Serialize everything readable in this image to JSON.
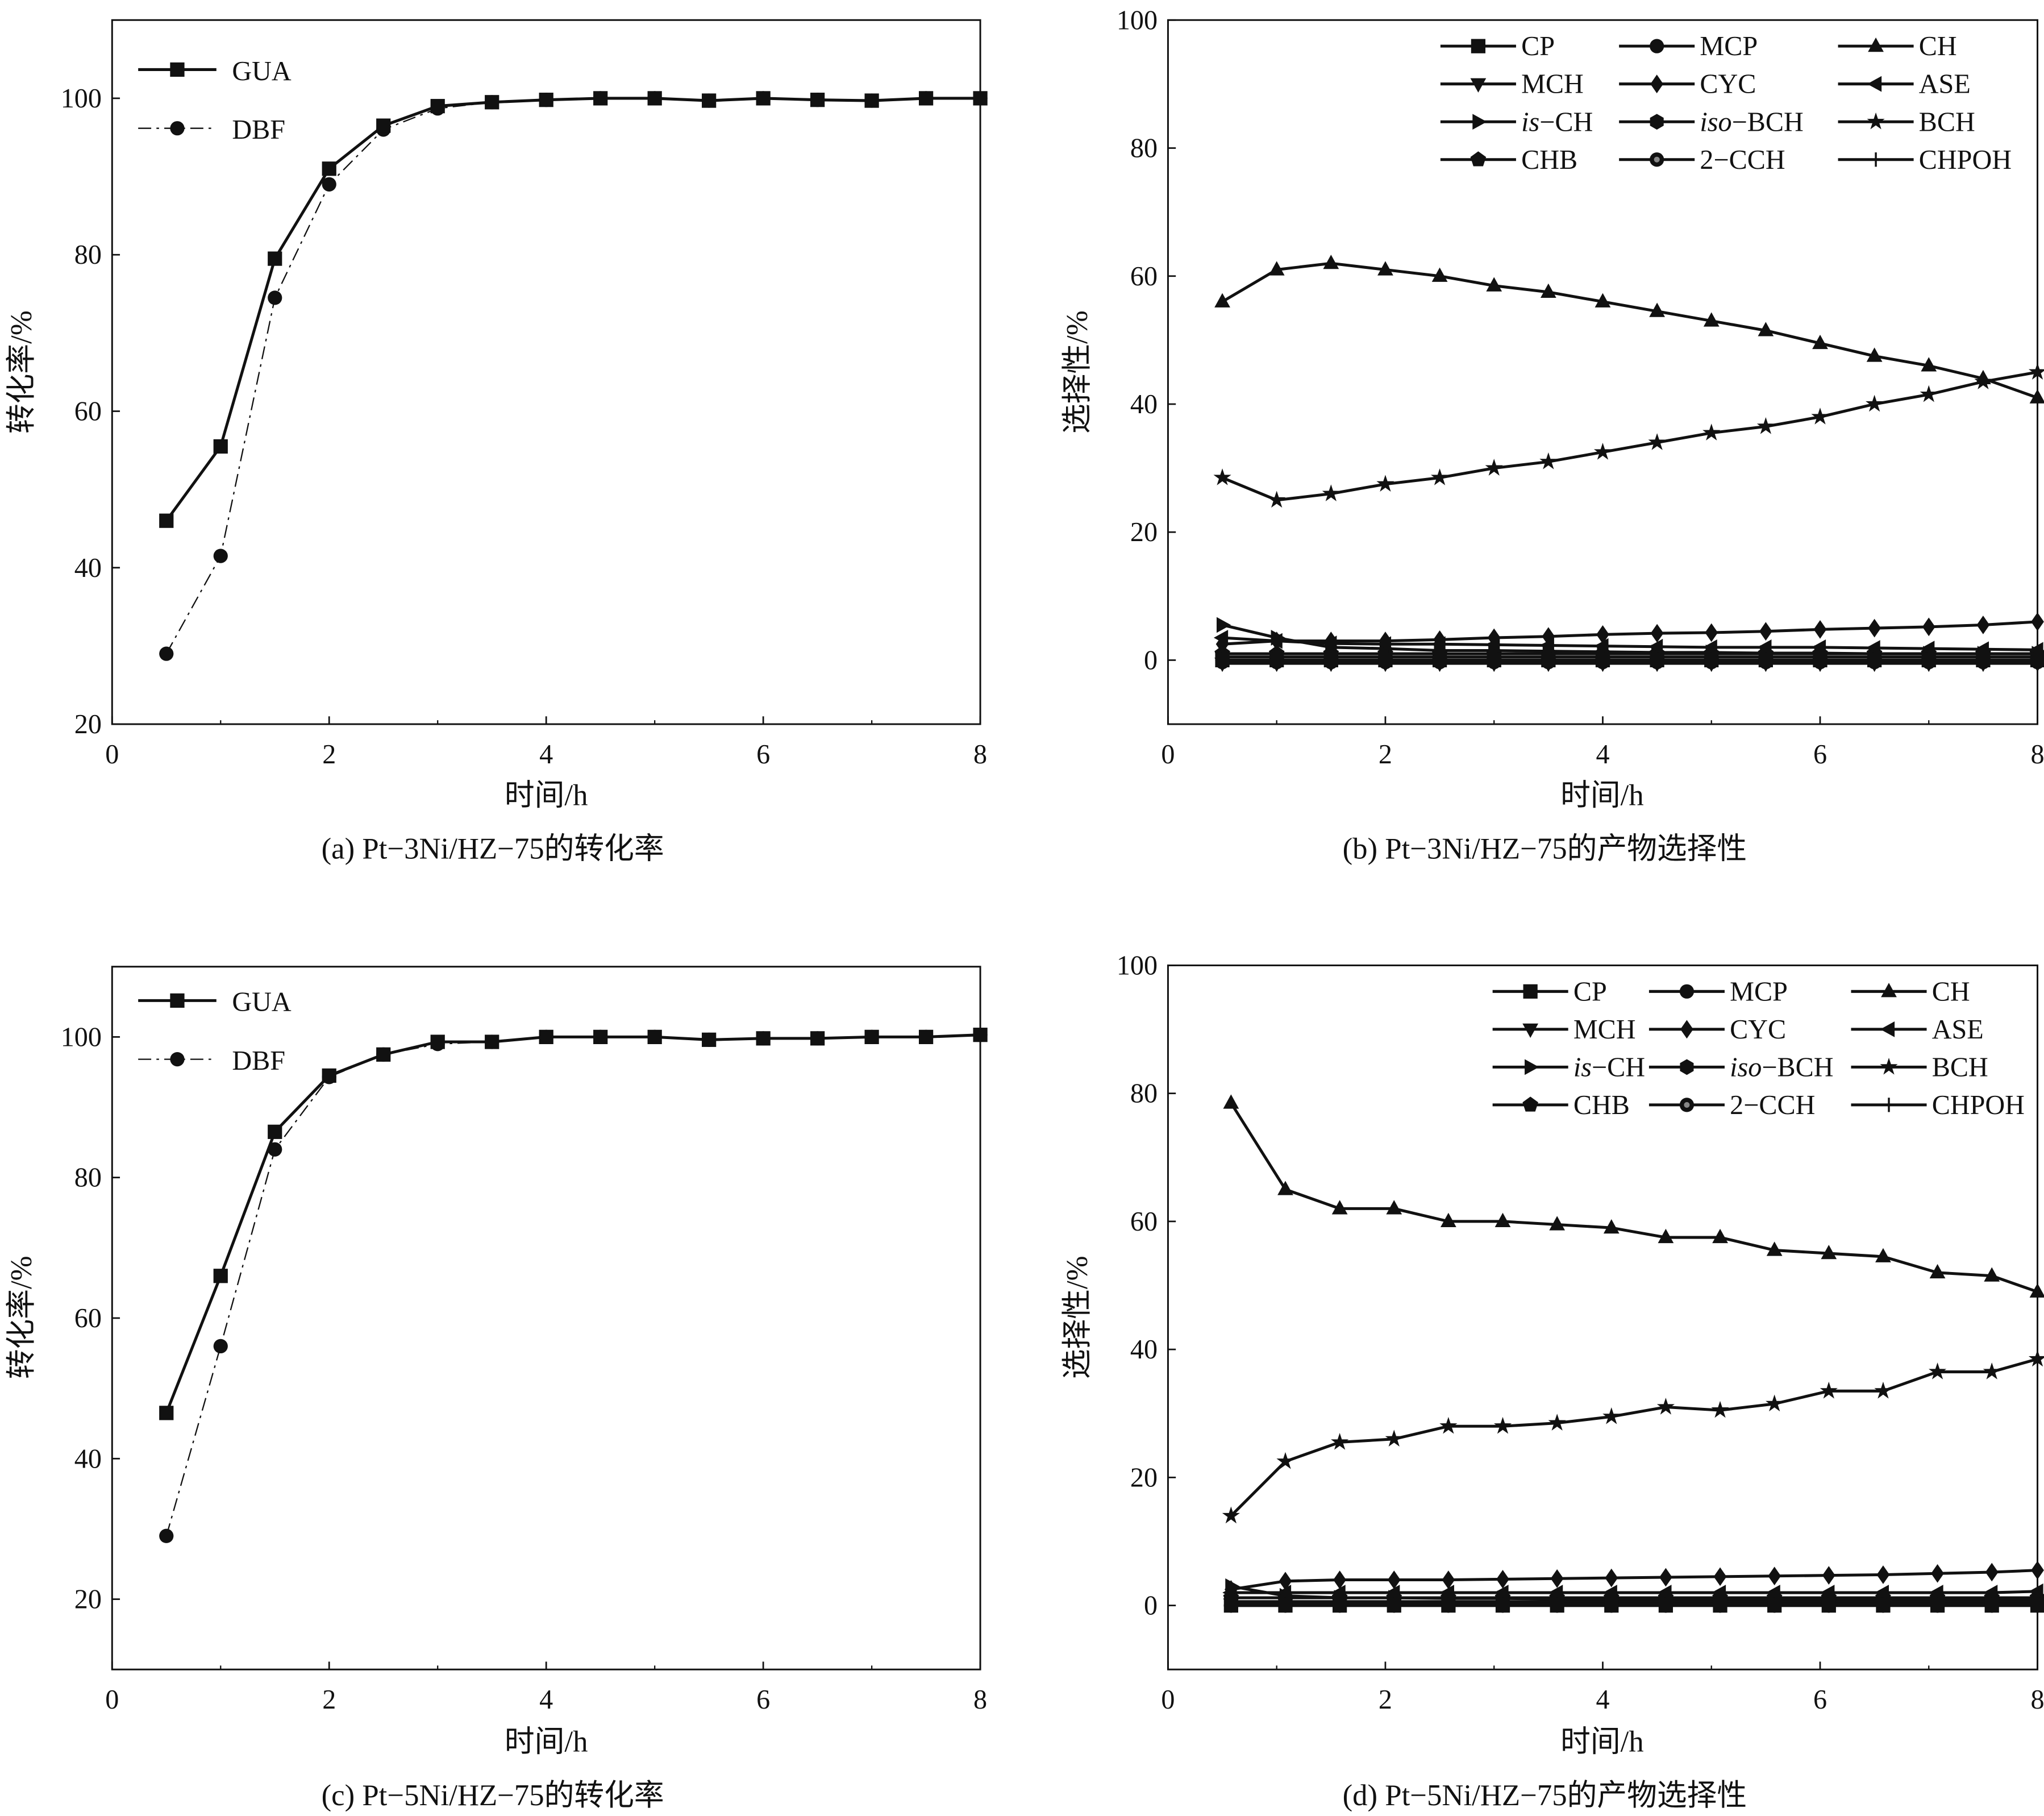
{
  "chart_data": [
    {
      "id": "a",
      "type": "line",
      "caption": "(a) Pt−3Ni/HZ−75的转化率",
      "xlabel": "时间/h",
      "ylabel": "转化率/%",
      "xlim": [
        0,
        8
      ],
      "ylim": [
        20,
        110
      ],
      "xticks": [
        0,
        2,
        4,
        6,
        8
      ],
      "yticks": [
        20,
        40,
        60,
        80,
        100
      ],
      "legend": "top-left",
      "grid": false,
      "x": [
        0.5,
        1,
        1.5,
        2,
        2.5,
        3,
        3.5,
        4,
        4.5,
        5,
        5.5,
        6,
        6.5,
        7,
        7.5,
        8
      ],
      "series": [
        {
          "name": "GUA",
          "marker": "square",
          "style": "solid",
          "values": [
            46,
            55.5,
            79.5,
            91,
            96.5,
            99,
            99.5,
            99.8,
            100,
            100,
            99.7,
            100,
            99.8,
            99.7,
            100,
            100
          ]
        },
        {
          "name": "DBF",
          "marker": "circle",
          "style": "dashdot",
          "values": [
            29,
            41.5,
            74.5,
            89,
            96,
            98.7,
            99.5,
            99.8,
            100,
            100,
            99.7,
            100,
            99.8,
            99.7,
            100,
            100
          ]
        }
      ]
    },
    {
      "id": "b",
      "type": "line",
      "caption": "(b) Pt−3Ni/HZ−75的产物选择性",
      "xlabel": "时间/h",
      "ylabel": "选择性/%",
      "xlim": [
        0,
        8
      ],
      "ylim": [
        -10,
        100
      ],
      "xticks": [
        0,
        2,
        4,
        6,
        8
      ],
      "yticks": [
        0,
        20,
        40,
        60,
        80,
        100
      ],
      "legend": "top-right",
      "grid": false,
      "x": [
        0.5,
        1,
        1.5,
        2,
        2.5,
        3,
        3.5,
        4,
        4.5,
        5,
        5.5,
        6,
        6.5,
        7,
        7.5,
        8
      ],
      "series": [
        {
          "name": "CP",
          "marker": "square",
          "values": [
            0,
            0,
            0,
            0,
            0,
            0,
            0,
            0,
            0,
            0,
            0,
            0,
            0,
            0,
            0,
            0
          ]
        },
        {
          "name": "MCP",
          "marker": "circle",
          "values": [
            -0.3,
            -0.3,
            -0.3,
            -0.3,
            -0.3,
            -0.3,
            -0.3,
            -0.3,
            -0.3,
            -0.3,
            -0.3,
            -0.3,
            -0.3,
            -0.3,
            -0.3,
            -0.3
          ]
        },
        {
          "name": "CH",
          "marker": "triangle-up",
          "values": [
            56,
            61,
            62,
            61,
            60,
            58.5,
            57.5,
            56,
            54.5,
            53,
            51.5,
            49.5,
            47.5,
            46,
            44,
            41
          ]
        },
        {
          "name": "MCH",
          "marker": "triangle-down",
          "values": [
            -0.5,
            -0.5,
            -0.5,
            -0.5,
            -0.5,
            -0.5,
            -0.5,
            -0.5,
            -0.5,
            -0.5,
            -0.5,
            -0.5,
            -0.5,
            -0.5,
            -0.5,
            -0.5
          ]
        },
        {
          "name": "CYC",
          "marker": "diamond",
          "values": [
            2.5,
            3,
            3,
            3,
            3.2,
            3.5,
            3.7,
            4,
            4.2,
            4.3,
            4.5,
            4.8,
            5,
            5.2,
            5.5,
            6
          ]
        },
        {
          "name": "ASE",
          "marker": "triangle-left",
          "values": [
            3.5,
            3,
            2.6,
            2.5,
            2.5,
            2.4,
            2.3,
            2.2,
            2.1,
            2,
            2,
            2,
            1.9,
            1.8,
            1.7,
            1.6
          ]
        },
        {
          "name": "is-CH",
          "marker": "triangle-right",
          "values": [
            5.5,
            3.5,
            2,
            1.8,
            1.5,
            1.5,
            1.4,
            1.3,
            1.2,
            1.2,
            1.1,
            1.1,
            1,
            1,
            1,
            1
          ]
        },
        {
          "name": "iso-BCH",
          "marker": "hexagon",
          "values": [
            0.5,
            0.5,
            0.5,
            0.5,
            0.5,
            0.5,
            0.5,
            0.5,
            0.5,
            0.5,
            0.5,
            0.5,
            0.5,
            0.5,
            0.5,
            0.5
          ]
        },
        {
          "name": "BCH",
          "marker": "star",
          "values": [
            28.5,
            25,
            26,
            27.5,
            28.5,
            30,
            31,
            32.5,
            34,
            35.5,
            36.5,
            38,
            40,
            41.5,
            43.5,
            45
          ]
        },
        {
          "name": "CHB",
          "marker": "pentagon",
          "values": [
            1,
            1,
            1,
            1,
            1,
            1,
            1,
            1,
            1,
            1,
            1,
            1,
            1,
            1,
            1,
            1
          ]
        },
        {
          "name": "2-CCH",
          "marker": "circle-gray",
          "values": [
            0,
            0,
            0,
            0,
            0,
            0,
            0,
            0,
            0,
            0,
            0,
            0,
            0,
            0,
            0,
            0
          ]
        },
        {
          "name": "CHPOH",
          "marker": "plus",
          "values": [
            0,
            0,
            0,
            0,
            0,
            0,
            0,
            0,
            0,
            0,
            0,
            0,
            0,
            0,
            0,
            0
          ]
        }
      ]
    },
    {
      "id": "c",
      "type": "line",
      "caption": "(c) Pt−5Ni/HZ−75的转化率",
      "xlabel": "时间/h",
      "ylabel": "转化率/%",
      "xlim": [
        0,
        8
      ],
      "ylim": [
        10,
        110
      ],
      "xticks": [
        0,
        2,
        4,
        6,
        8
      ],
      "yticks": [
        20,
        40,
        60,
        80,
        100
      ],
      "legend": "top-left",
      "grid": false,
      "x": [
        0.5,
        1,
        1.5,
        2,
        2.5,
        3,
        3.5,
        4,
        4.5,
        5,
        5.5,
        6,
        6.5,
        7,
        7.5,
        8
      ],
      "series": [
        {
          "name": "GUA",
          "marker": "square",
          "style": "solid",
          "values": [
            46.5,
            66,
            86.5,
            94.5,
            97.5,
            99.3,
            99.3,
            100,
            100,
            100,
            99.6,
            99.8,
            99.8,
            100,
            100,
            100.3
          ]
        },
        {
          "name": "DBF",
          "marker": "circle",
          "style": "dashdot",
          "values": [
            29,
            56,
            84,
            94.3,
            97.5,
            99,
            99.3,
            100,
            100,
            100,
            99.6,
            99.8,
            99.8,
            100,
            100,
            100.3
          ]
        }
      ]
    },
    {
      "id": "d",
      "type": "line",
      "caption": "(d) Pt−5Ni/HZ−75的产物选择性",
      "xlabel": "时间/h",
      "ylabel": "选择性/%",
      "xlim": [
        0,
        8
      ],
      "ylim": [
        -10,
        100
      ],
      "xticks": [
        0,
        2,
        4,
        6,
        8
      ],
      "yticks": [
        0,
        20,
        40,
        60,
        80,
        100
      ],
      "legend": "top-right",
      "grid": false,
      "x": [
        0.58,
        1.08,
        1.58,
        2.08,
        2.58,
        3.08,
        3.58,
        4.08,
        4.58,
        5.08,
        5.58,
        6.08,
        6.58,
        7.08,
        7.58,
        8
      ],
      "series": [
        {
          "name": "CP",
          "marker": "square",
          "values": [
            0,
            0,
            0,
            0,
            0,
            0,
            0,
            0,
            0,
            0,
            0,
            0,
            0,
            0,
            0,
            0
          ]
        },
        {
          "name": "MCP",
          "marker": "circle",
          "values": [
            0,
            0,
            0,
            0,
            0,
            0,
            0,
            0,
            0,
            0,
            0,
            0,
            0,
            0,
            0,
            0
          ]
        },
        {
          "name": "CH",
          "marker": "triangle-up",
          "values": [
            78.5,
            65,
            62,
            62,
            60,
            60,
            59.5,
            59,
            57.5,
            57.5,
            55.5,
            55,
            54.5,
            52,
            51.5,
            49
          ]
        },
        {
          "name": "MCH",
          "marker": "triangle-down",
          "values": [
            0.2,
            0.2,
            0.2,
            0.2,
            0.2,
            0.2,
            0.2,
            0.2,
            0.2,
            0.2,
            0.2,
            0.2,
            0.2,
            0.2,
            0.2,
            0.2
          ]
        },
        {
          "name": "CYC",
          "marker": "diamond",
          "values": [
            2.5,
            3.8,
            4,
            4,
            4,
            4.1,
            4.2,
            4.3,
            4.4,
            4.5,
            4.6,
            4.7,
            4.8,
            5,
            5.2,
            5.5
          ]
        },
        {
          "name": "ASE",
          "marker": "triangle-left",
          "values": [
            2,
            2,
            2,
            2,
            2,
            2,
            2,
            2,
            2,
            2,
            2,
            2,
            2,
            2,
            2,
            2.2
          ]
        },
        {
          "name": "is-CH",
          "marker": "triangle-right",
          "values": [
            3,
            1.5,
            1.2,
            1.2,
            1.1,
            1.1,
            1,
            1,
            1,
            1,
            1,
            1,
            1,
            1,
            1,
            1
          ]
        },
        {
          "name": "iso-BCH",
          "marker": "hexagon",
          "values": [
            0.6,
            0.6,
            0.6,
            0.6,
            0.6,
            0.6,
            0.6,
            0.6,
            0.6,
            0.6,
            0.6,
            0.6,
            0.6,
            0.6,
            0.6,
            0.6
          ]
        },
        {
          "name": "BCH",
          "marker": "star",
          "values": [
            14,
            22.5,
            25.5,
            26,
            28,
            28,
            28.5,
            29.5,
            31,
            30.5,
            31.5,
            33.5,
            33.5,
            36.5,
            36.5,
            38.5
          ]
        },
        {
          "name": "CHB",
          "marker": "pentagon",
          "values": [
            1.2,
            1.2,
            1.2,
            1.2,
            1.2,
            1.2,
            1.2,
            1.2,
            1.2,
            1.2,
            1.2,
            1.2,
            1.2,
            1.2,
            1.2,
            1.2
          ]
        },
        {
          "name": "2-CCH",
          "marker": "circle-gray",
          "values": [
            0,
            0,
            0,
            0,
            0,
            0,
            0,
            0,
            0,
            0,
            0,
            0,
            0,
            0,
            0,
            0
          ]
        },
        {
          "name": "CHPOH",
          "marker": "plus",
          "values": [
            0,
            0,
            0,
            0,
            0,
            0,
            0,
            0,
            0,
            0,
            0,
            0,
            0,
            0,
            0,
            0
          ]
        }
      ]
    }
  ],
  "colors": {
    "ink": "#111111",
    "background": "#ffffff",
    "marker_gray": "#888888"
  }
}
